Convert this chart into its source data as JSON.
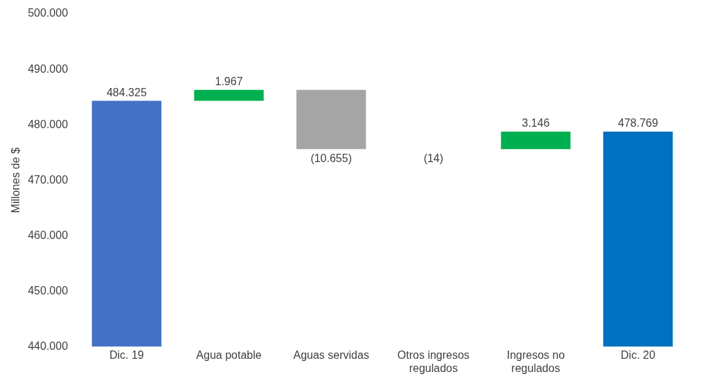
{
  "chart_data": {
    "type": "bar",
    "ylabel": "Millones de $",
    "categories": [
      "Dic. 19",
      "Agua potable",
      "Aguas servidas",
      "Otros ingresos regulados",
      "Ingresos no regulados",
      "Dic. 20"
    ],
    "base": [
      440000,
      484325,
      486292,
      475637,
      475623,
      440000
    ],
    "values": [
      44325,
      1967,
      -10655,
      -14,
      3146,
      38769
    ],
    "value_labels": [
      "484.325",
      "1.967",
      "(10.655)",
      "(14)",
      "3.146",
      "478.769"
    ],
    "colors": [
      "#4472c4",
      "#00b050",
      "#a5a5a5",
      "#a5a5a5",
      "#00b050",
      "#0070c0"
    ],
    "ylim": [
      440000,
      500000
    ],
    "yticks": [
      {
        "value": 440000,
        "label": "440.000"
      },
      {
        "value": 450000,
        "label": "450.000"
      },
      {
        "value": 460000,
        "label": "460.000"
      },
      {
        "value": 470000,
        "label": "470.000"
      },
      {
        "value": 480000,
        "label": "480.000"
      },
      {
        "value": 490000,
        "label": "490.000"
      },
      {
        "value": 500000,
        "label": "500.000"
      }
    ],
    "grid": false,
    "legend": false
  }
}
